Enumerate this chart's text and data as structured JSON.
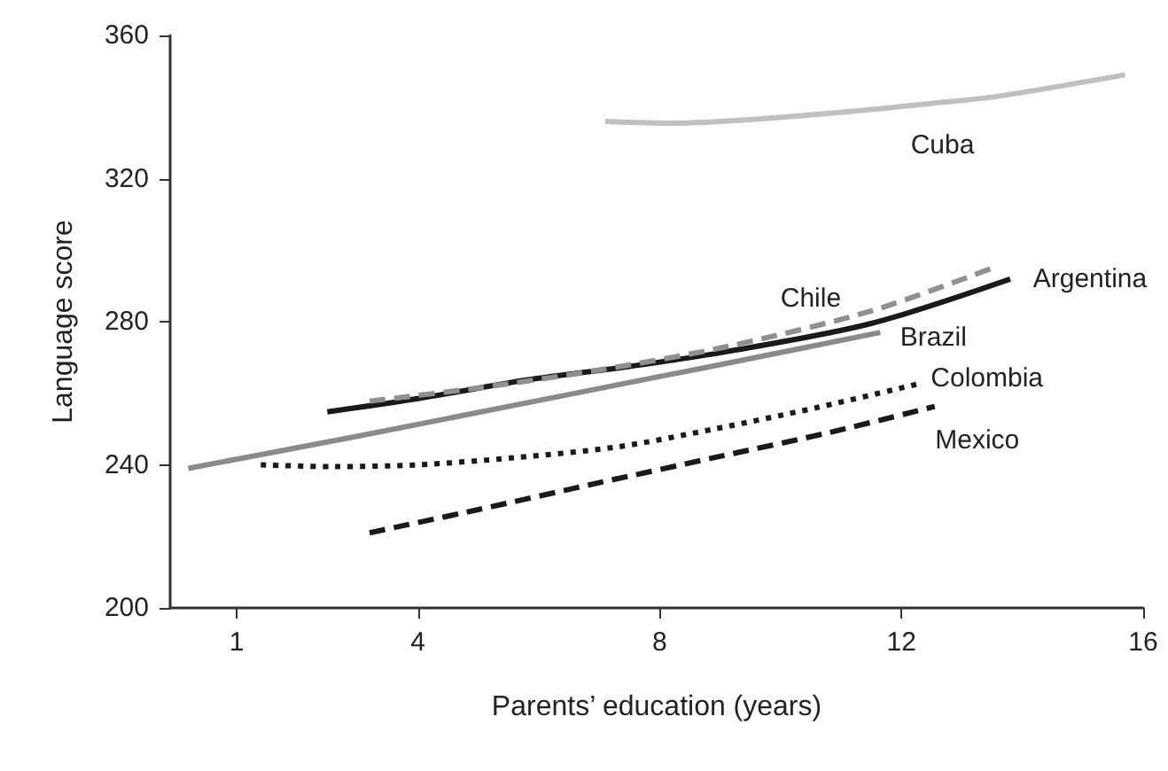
{
  "chart_data": {
    "type": "line",
    "xlabel": "Parents’ education (years)",
    "ylabel": "Language score",
    "xlim": [
      -0.1,
      16
    ],
    "ylim": [
      200,
      360
    ],
    "xticks": [
      1,
      4,
      8,
      12,
      16
    ],
    "yticks": [
      200,
      240,
      280,
      320,
      360
    ],
    "grid": false,
    "legend": false,
    "marker": "none",
    "series": [
      {
        "name": "Cuba",
        "color": "#c0c0c0",
        "line_style": "solid",
        "x": [
          7.1,
          8.2,
          9.5,
          11,
          12.5,
          13.6,
          15.7
        ],
        "values": [
          336,
          335.5,
          336.5,
          338.5,
          341,
          343,
          349
        ]
      },
      {
        "name": "Argentina",
        "color": "#1a1a1a",
        "line_style": "solid",
        "x": [
          2.5,
          4,
          5.8,
          7.5,
          9.1,
          11.5,
          13.8
        ],
        "values": [
          254.8,
          258.5,
          263.7,
          267.5,
          271.6,
          279.5,
          291.9
        ]
      },
      {
        "name": "Chile",
        "color": "#909090",
        "line_style": "dashed",
        "x": [
          3.2,
          5,
          7,
          9.1,
          11.5,
          13.55
        ],
        "values": [
          257.8,
          261.5,
          266.5,
          273,
          283,
          295.3
        ]
      },
      {
        "name": "Brazil",
        "color": "#8a8a8a",
        "line_style": "solid",
        "x": [
          0.2,
          3,
          6,
          9,
          11.65
        ],
        "values": [
          239,
          248,
          258,
          268,
          277
        ]
      },
      {
        "name": "Colombia",
        "color": "#1a1a1a",
        "line_style": "dotted",
        "x": [
          1.4,
          2.6,
          4,
          5.6,
          7.3,
          8.9,
          10.6,
          12.3
        ],
        "values": [
          240,
          239.5,
          240,
          242,
          245,
          250,
          256,
          262.7
        ]
      },
      {
        "name": "Mexico",
        "color": "#1a1a1a",
        "line_style": "dashed",
        "x": [
          3.2,
          5,
          7,
          8.9,
          10.8,
          12.55
        ],
        "values": [
          221,
          227.5,
          235,
          242,
          249,
          256.3
        ]
      }
    ]
  }
}
